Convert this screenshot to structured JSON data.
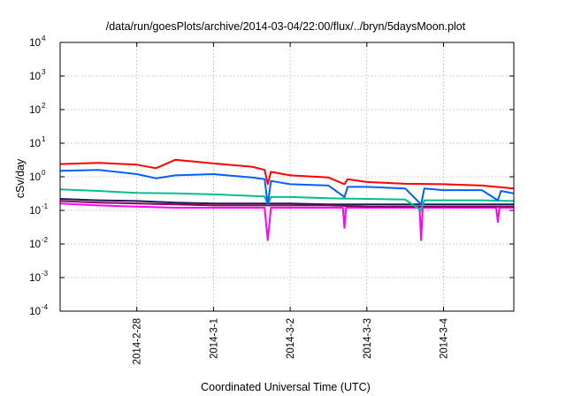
{
  "chart_data": {
    "type": "line",
    "title": "/data/run/goesPlots/archive/2014-03-04/22:00/flux/../bryn/5daysMoon.plot",
    "xlabel": "Coordinated Universal Time (UTC)",
    "ylabel": "cSv/day",
    "yscale": "log",
    "ylim": [
      0.0001,
      10000
    ],
    "xlim": [
      "2014-02-27T00:00",
      "2014-03-04T22:00"
    ],
    "grid": true,
    "y_ticks": [
      {
        "base": "10",
        "exp": "-4"
      },
      {
        "base": "10",
        "exp": "-3"
      },
      {
        "base": "10",
        "exp": "-2"
      },
      {
        "base": "10",
        "exp": "-1"
      },
      {
        "base": "10",
        "exp": "0"
      },
      {
        "base": "10",
        "exp": "1"
      },
      {
        "base": "10",
        "exp": "2"
      },
      {
        "base": "10",
        "exp": "3"
      },
      {
        "base": "10",
        "exp": "4"
      }
    ],
    "x_ticks": [
      {
        "date": "2014-02-28T00:00",
        "label": "2014-2-28"
      },
      {
        "date": "2014-03-01T00:00",
        "label": "2014-3-1"
      },
      {
        "date": "2014-03-02T00:00",
        "label": "2014-3-2"
      },
      {
        "date": "2014-03-03T00:00",
        "label": "2014-3-3"
      },
      {
        "date": "2014-03-04T00:00",
        "label": "2014-3-4"
      }
    ],
    "series": [
      {
        "color": "#ff00ff",
        "x": [
          "2014-02-27T00:00",
          "2014-02-27T12:00",
          "2014-02-28T00:00",
          "2014-02-28T12:00",
          "2014-03-01T00:00",
          "2014-03-01T12:00",
          "2014-03-01T16:00",
          "2014-03-01T17:00",
          "2014-03-01T18:00",
          "2014-03-02T00:00",
          "2014-03-02T12:00",
          "2014-03-02T16:30",
          "2014-03-02T17:00",
          "2014-03-02T17:30",
          "2014-03-03T00:00",
          "2014-03-03T12:00",
          "2014-03-03T16:30",
          "2014-03-03T17:00",
          "2014-03-03T17:30",
          "2014-03-04T00:00",
          "2014-03-04T12:00",
          "2014-03-04T16:30",
          "2014-03-04T17:00",
          "2014-03-04T17:30",
          "2014-03-04T22:00"
        ],
        "values": [
          0.16,
          0.14,
          0.13,
          0.12,
          0.12,
          0.12,
          0.12,
          0.013,
          0.12,
          0.12,
          0.12,
          0.12,
          0.03,
          0.12,
          0.12,
          0.12,
          0.12,
          0.013,
          0.12,
          0.12,
          0.12,
          0.12,
          0.045,
          0.12,
          0.12
        ]
      },
      {
        "color": "#1a1a5e",
        "x": [
          "2014-02-27T00:00",
          "2014-02-27T12:00",
          "2014-02-28T00:00",
          "2014-02-28T12:00",
          "2014-03-01T00:00",
          "2014-03-01T12:00",
          "2014-03-02T00:00",
          "2014-03-02T12:00",
          "2014-03-03T00:00",
          "2014-03-03T12:00",
          "2014-03-04T00:00",
          "2014-03-04T12:00",
          "2014-03-04T22:00"
        ],
        "values": [
          0.22,
          0.2,
          0.19,
          0.17,
          0.16,
          0.16,
          0.16,
          0.15,
          0.15,
          0.15,
          0.15,
          0.15,
          0.15
        ]
      },
      {
        "color": "#8b0057",
        "x": [
          "2014-02-27T00:00",
          "2014-02-27T12:00",
          "2014-02-28T00:00",
          "2014-02-28T12:00",
          "2014-03-01T00:00",
          "2014-03-01T12:00",
          "2014-03-02T00:00",
          "2014-03-02T12:00",
          "2014-03-03T00:00",
          "2014-03-03T12:00",
          "2014-03-04T00:00",
          "2014-03-04T12:00",
          "2014-03-04T22:00"
        ],
        "values": [
          0.19,
          0.17,
          0.16,
          0.15,
          0.14,
          0.14,
          0.14,
          0.14,
          0.13,
          0.13,
          0.13,
          0.13,
          0.13
        ]
      },
      {
        "color": "#00c090",
        "x": [
          "2014-02-27T00:00",
          "2014-02-27T12:00",
          "2014-02-28T00:00",
          "2014-02-28T12:00",
          "2014-03-01T00:00",
          "2014-03-01T12:00",
          "2014-03-01T16:00",
          "2014-03-01T17:00",
          "2014-03-01T18:00",
          "2014-03-02T00:00",
          "2014-03-02T12:00",
          "2014-03-03T00:00",
          "2014-03-03T12:00",
          "2014-03-03T17:00",
          "2014-03-03T18:00",
          "2014-03-04T00:00",
          "2014-03-04T12:00",
          "2014-03-04T22:00"
        ],
        "values": [
          0.42,
          0.38,
          0.33,
          0.32,
          0.3,
          0.27,
          0.26,
          0.15,
          0.25,
          0.25,
          0.23,
          0.22,
          0.21,
          0.1,
          0.2,
          0.2,
          0.2,
          0.19
        ]
      },
      {
        "color": "#0060ff",
        "x": [
          "2014-02-27T00:00",
          "2014-02-27T12:00",
          "2014-02-28T00:00",
          "2014-02-28T06:00",
          "2014-02-28T12:00",
          "2014-03-01T00:00",
          "2014-03-01T12:00",
          "2014-03-01T16:00",
          "2014-03-01T17:00",
          "2014-03-01T18:00",
          "2014-03-02T00:00",
          "2014-03-02T12:00",
          "2014-03-02T17:00",
          "2014-03-02T18:00",
          "2014-03-03T00:00",
          "2014-03-03T12:00",
          "2014-03-03T17:00",
          "2014-03-03T18:00",
          "2014-03-04T00:00",
          "2014-03-04T12:00",
          "2014-03-04T17:00",
          "2014-03-04T18:00",
          "2014-03-04T22:00"
        ],
        "values": [
          1.5,
          1.6,
          1.2,
          0.9,
          1.1,
          1.2,
          0.95,
          0.85,
          0.15,
          0.75,
          0.6,
          0.55,
          0.25,
          0.5,
          0.5,
          0.45,
          0.15,
          0.45,
          0.4,
          0.4,
          0.2,
          0.38,
          0.32
        ]
      },
      {
        "color": "#ff0000",
        "x": [
          "2014-02-27T00:00",
          "2014-02-27T12:00",
          "2014-02-28T00:00",
          "2014-02-28T06:00",
          "2014-02-28T12:00",
          "2014-03-01T00:00",
          "2014-03-01T12:00",
          "2014-03-01T16:00",
          "2014-03-01T17:00",
          "2014-03-01T18:00",
          "2014-03-02T00:00",
          "2014-03-02T12:00",
          "2014-03-02T17:00",
          "2014-03-02T18:00",
          "2014-03-03T00:00",
          "2014-03-03T12:00",
          "2014-03-04T00:00",
          "2014-03-04T12:00",
          "2014-03-04T22:00"
        ],
        "values": [
          2.4,
          2.6,
          2.3,
          1.8,
          3.2,
          2.5,
          2.0,
          1.6,
          0.6,
          1.4,
          1.1,
          0.95,
          0.6,
          0.85,
          0.7,
          0.62,
          0.6,
          0.55,
          0.45
        ]
      }
    ]
  }
}
